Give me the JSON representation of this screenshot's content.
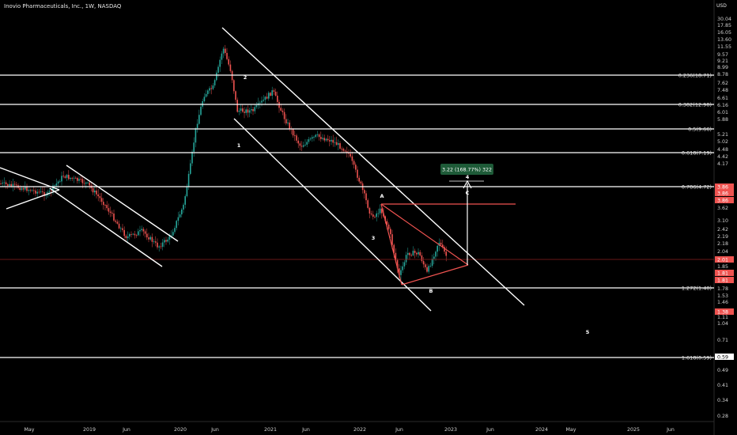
{
  "header": {
    "title": "Inovio Pharmaceuticals, Inc., 1W, NASDAQ",
    "currency": "USD"
  },
  "colors": {
    "background": "#000000",
    "line": "#ffffff",
    "bull": "#26a69a",
    "bear": "#ef5350",
    "price_line": "#8b1f1f",
    "badge_red": "#ef5350",
    "badge_green": "#1e5b38"
  },
  "price_axis": {
    "labels": [
      "30.04",
      "17.85",
      "16.05",
      "13.60",
      "11.55",
      "9.57",
      "9.21",
      "8.99",
      "8.78",
      "7.62",
      "7.48",
      "6.61",
      "6.16",
      "6.01",
      "5.88",
      "5.21",
      "5.02",
      "4.48",
      "4.42",
      "4.17",
      "3.62",
      "3.10",
      "2.42",
      "2.19",
      "2.18",
      "2.04",
      "1.85",
      "1.78",
      "1.53",
      "1.46",
      "1.11",
      "1.04",
      "0.71",
      "0.49",
      "0.41",
      "0.34",
      "0.28"
    ],
    "badges": [
      "3.86",
      "3.86",
      "3.86",
      "2.01",
      "1.81",
      "1.81",
      "1.38",
      "0.59"
    ]
  },
  "time_axis": {
    "labels": [
      "May",
      "2019",
      "Jun",
      "2020",
      "Jun",
      "2021",
      "Jun",
      "2022",
      "Jun",
      "2023",
      "Jun",
      "2024",
      "May",
      "2025",
      "Jun"
    ]
  },
  "fib_levels": [
    {
      "label": "0.236(18.71)",
      "value": 18.71
    },
    {
      "label": "0.382(12.98)",
      "value": 12.98
    },
    {
      "label": "0.5(9.66)",
      "value": 9.66
    },
    {
      "label": "0.618(7.19)",
      "value": 7.19
    },
    {
      "label": "0.786(4.72)",
      "value": 4.72
    },
    {
      "label": "1.272(1.40)",
      "value": 1.4
    },
    {
      "label": "1.618(0.59)",
      "value": 0.59
    }
  ],
  "wave_labels": [
    "1",
    "2",
    "3",
    "4",
    "5",
    "A",
    "B",
    "C"
  ],
  "measure": {
    "label": "3.22 (168.77%) 322"
  }
}
